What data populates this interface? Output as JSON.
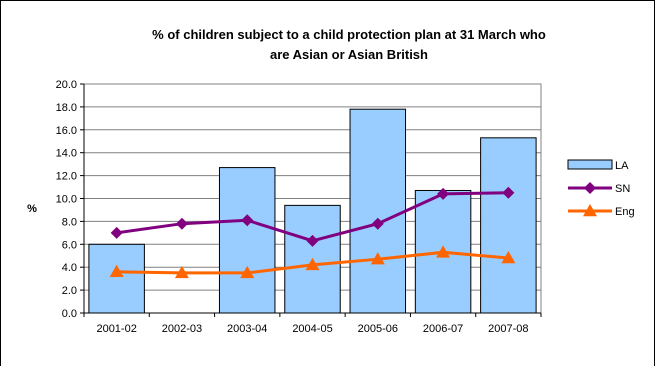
{
  "chart_data": {
    "type": "bar",
    "title_line1": "% of children subject to a child protection plan at 31 March who",
    "title_line2": "are Asian or Asian British",
    "ylabel": "%",
    "xlabel": "",
    "ylim": [
      0,
      20
    ],
    "ytick_step": 2,
    "ytick_labels": [
      "0.0",
      "2.0",
      "4.0",
      "6.0",
      "8.0",
      "10.0",
      "12.0",
      "14.0",
      "16.0",
      "18.0",
      "20.0"
    ],
    "grid": true,
    "legend_position": "right",
    "categories": [
      "2001-02",
      "2002-03",
      "2003-04",
      "2004-05",
      "2005-06",
      "2006-07",
      "2007-08"
    ],
    "series": [
      {
        "name": "LA",
        "kind": "bar",
        "color": "#99ccff",
        "values": [
          6.0,
          0,
          12.7,
          9.4,
          17.8,
          10.7,
          15.3
        ]
      },
      {
        "name": "SN",
        "kind": "line",
        "color": "#800080",
        "marker": "diamond",
        "values": [
          7.0,
          7.8,
          8.1,
          6.3,
          7.8,
          10.4,
          10.5
        ]
      },
      {
        "name": "Eng",
        "kind": "line",
        "color": "#ff6600",
        "marker": "triangle",
        "values": [
          3.6,
          3.5,
          3.5,
          4.2,
          4.7,
          5.3,
          4.8
        ]
      }
    ]
  }
}
